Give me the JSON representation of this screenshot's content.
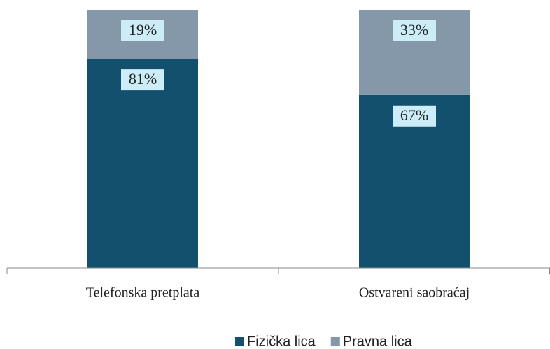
{
  "chart_data": {
    "type": "stacked_bar",
    "categories": [
      "Telefonska pretplata",
      "Ostvareni saobraćaj"
    ],
    "series": [
      {
        "name": "Fizička lica",
        "color": "#12506e",
        "values": [
          81,
          67
        ],
        "value_labels": [
          "81%",
          "67%"
        ]
      },
      {
        "name": "Pravna lica",
        "color": "#8598a9",
        "values": [
          19,
          33
        ],
        "value_labels": [
          "19%",
          "33%"
        ]
      }
    ],
    "ylim": [
      0,
      100
    ],
    "legend": "bottom"
  }
}
